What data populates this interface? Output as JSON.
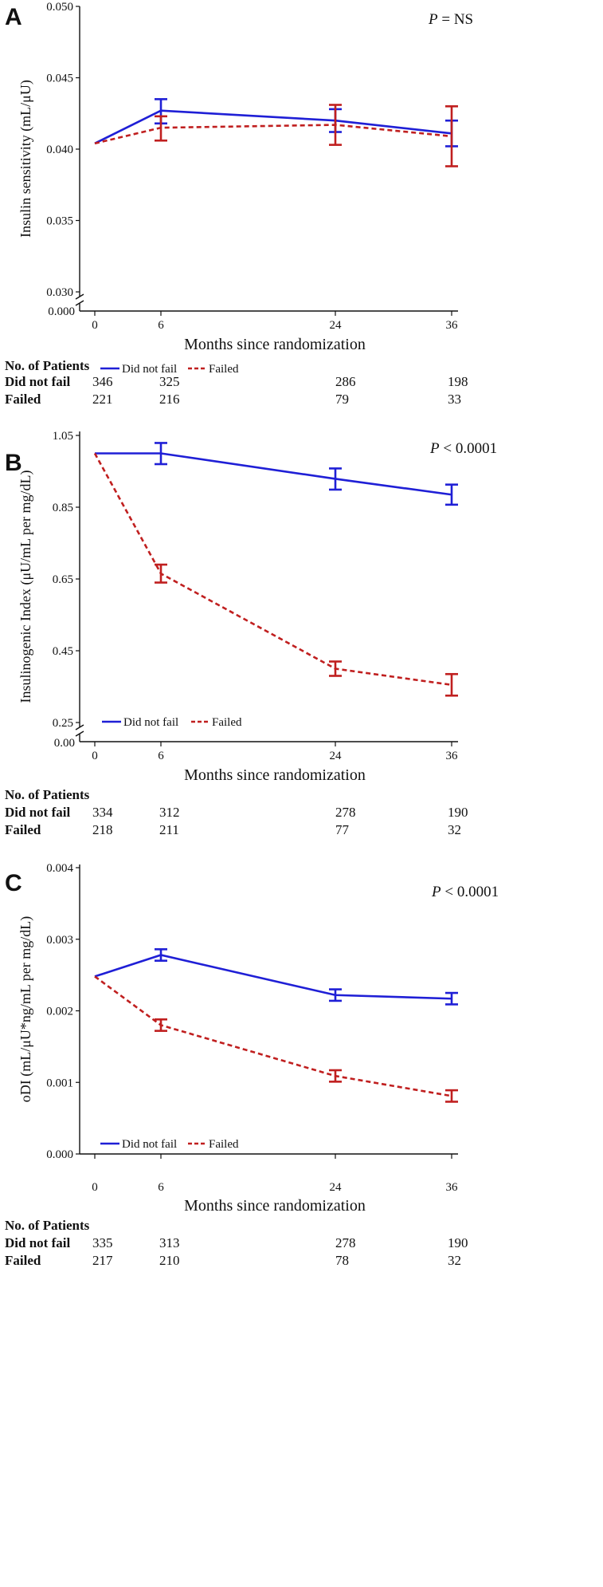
{
  "colors": {
    "did_not_fail": "#1f1fd6",
    "failed": "#c01f1f",
    "axis": "#111111"
  },
  "chart_data": [
    {
      "type": "line",
      "panel_label": "A",
      "title": "",
      "xlabel": "Months since randomization",
      "ylabel": "Insulin sensitivity (mL/μU)",
      "p_value": {
        "prefix": "P",
        "text": " = NS"
      },
      "x": [
        0,
        6,
        24,
        36
      ],
      "x_tick_labels": [
        "0",
        "6",
        "24",
        "36"
      ],
      "ylim": [
        0.03,
        0.05
      ],
      "y_ticks": [
        0.03,
        0.035,
        0.04,
        0.045,
        0.05
      ],
      "y_tick_labels": [
        "0.030",
        "0.035",
        "0.040",
        "0.045",
        "0.050"
      ],
      "axis_break_label": "0.000",
      "legend": {
        "placement": "bottom-left",
        "entries": [
          "Did not fail",
          "Failed"
        ]
      },
      "series": [
        {
          "name": "Did not fail",
          "style": "solid",
          "values": [
            0.0404,
            0.0427,
            0.042,
            0.0411
          ],
          "err_low": [
            null,
            0.0418,
            0.0412,
            0.0402
          ],
          "err_high": [
            null,
            0.0435,
            0.0428,
            0.042
          ]
        },
        {
          "name": "Failed",
          "style": "dashed",
          "values": [
            0.0404,
            0.0415,
            0.0417,
            0.0409
          ],
          "err_low": [
            null,
            0.0406,
            0.0403,
            0.0388
          ],
          "err_high": [
            null,
            0.0423,
            0.0431,
            0.043
          ]
        }
      ],
      "patients": {
        "header": "No. of Patients",
        "rows": [
          {
            "label": "Did not fail",
            "counts": [
              "346",
              "325",
              "286",
              "198"
            ]
          },
          {
            "label": "Failed",
            "counts": [
              "221",
              "216",
              "79",
              "33"
            ]
          }
        ]
      }
    },
    {
      "type": "line",
      "panel_label": "B",
      "title": "",
      "xlabel": "Months since randomization",
      "ylabel": "Insulinogenic Index (μU/mL per mg/dL)",
      "p_value": {
        "prefix": "P",
        "text": " < 0.0001"
      },
      "x": [
        0,
        6,
        24,
        36
      ],
      "x_tick_labels": [
        "0",
        "6",
        "24",
        "36"
      ],
      "ylim": [
        0.25,
        1.05
      ],
      "y_ticks": [
        0.25,
        0.45,
        0.65,
        0.85,
        1.05
      ],
      "y_tick_labels": [
        "0.25",
        "0.45",
        "0.65",
        "0.85",
        "1.05"
      ],
      "axis_break_label": "0.00",
      "legend": {
        "placement": "bottom-left",
        "entries": [
          "Did not fail",
          "Failed"
        ]
      },
      "series": [
        {
          "name": "Did not fail",
          "style": "solid",
          "values": [
            1.0,
            1.0,
            0.929,
            0.885
          ],
          "err_low": [
            null,
            0.97,
            0.899,
            0.857
          ],
          "err_high": [
            null,
            1.029,
            0.958,
            0.913
          ]
        },
        {
          "name": "Failed",
          "style": "dashed",
          "values": [
            1.0,
            0.665,
            0.4,
            0.355
          ],
          "err_low": [
            null,
            0.64,
            0.38,
            0.325
          ],
          "err_high": [
            null,
            0.69,
            0.42,
            0.385
          ]
        }
      ],
      "patients": {
        "header": "No. of Patients",
        "rows": [
          {
            "label": "Did not fail",
            "counts": [
              "334",
              "312",
              "278",
              "190"
            ]
          },
          {
            "label": "Failed",
            "counts": [
              "218",
              "211",
              "77",
              "32"
            ]
          }
        ]
      }
    },
    {
      "type": "line",
      "panel_label": "C",
      "title": "",
      "xlabel": "Months since randomization",
      "ylabel": "oDI (mL/μU*ng/mL per mg/dL)",
      "p_value": {
        "prefix": "P",
        "text": " < 0.0001"
      },
      "x": [
        0,
        6,
        24,
        36
      ],
      "x_tick_labels": [
        "0",
        "6",
        "24",
        "36"
      ],
      "ylim": [
        0.0,
        0.004
      ],
      "y_ticks": [
        0.0,
        0.001,
        0.002,
        0.003,
        0.004
      ],
      "y_tick_labels": [
        "0.000",
        "0.001",
        "0.002",
        "0.003",
        "0.004"
      ],
      "axis_break_label": "",
      "legend": {
        "placement": "bottom-left",
        "entries": [
          "Did not fail",
          "Failed"
        ]
      },
      "series": [
        {
          "name": "Did not fail",
          "style": "solid",
          "values": [
            0.00248,
            0.00278,
            0.00222,
            0.00217
          ],
          "err_low": [
            null,
            0.0027,
            0.00214,
            0.00209
          ],
          "err_high": [
            null,
            0.00286,
            0.0023,
            0.00225
          ]
        },
        {
          "name": "Failed",
          "style": "dashed",
          "values": [
            0.00248,
            0.0018,
            0.00109,
            0.00081
          ],
          "err_low": [
            null,
            0.00172,
            0.00101,
            0.00073
          ],
          "err_high": [
            null,
            0.00188,
            0.00117,
            0.00089
          ]
        }
      ],
      "patients": {
        "header": "No. of Patients",
        "rows": [
          {
            "label": "Did not fail",
            "counts": [
              "335",
              "313",
              "278",
              "190"
            ]
          },
          {
            "label": "Failed",
            "counts": [
              "217",
              "210",
              "78",
              "32"
            ]
          }
        ]
      }
    }
  ]
}
